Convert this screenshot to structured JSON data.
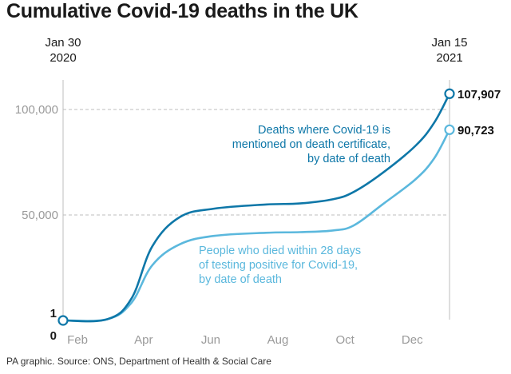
{
  "header": {
    "title": "Cumulative Covid-19 deaths in the UK"
  },
  "footer": {
    "source": "PA graphic. Source: ONS, Department of Health & Social Care"
  },
  "colors": {
    "certificate_series": "#0e77a8",
    "test_series": "#5bb8dd",
    "gridline": "#bdbdbd",
    "tick_text": "#9a9a9a"
  },
  "chart_data": {
    "type": "line",
    "title": "Cumulative Covid-19 deaths in the UK",
    "start_label": [
      "Jan 30",
      "2020"
    ],
    "end_label": [
      "Jan 15",
      "2021"
    ],
    "x_tick_labels": [
      "Feb",
      "Apr",
      "Jun",
      "Aug",
      "Oct",
      "Dec"
    ],
    "y_tick_labels": [
      "0",
      "1",
      "50,000",
      "100,000"
    ],
    "ylim": [
      0,
      110000
    ],
    "grid": true,
    "series": [
      {
        "name": "Deaths where Covid-19 is mentioned on death certificate, by date of death",
        "annotation": [
          "Deaths where Covid-19 is",
          "mentioned on death certificate,",
          "by date of death"
        ],
        "end_value": 107907,
        "end_label": "107,907",
        "points": [
          [
            "2020-01-30",
            1
          ],
          [
            "2020-03-10",
            200
          ],
          [
            "2020-04-01",
            10000
          ],
          [
            "2020-04-20",
            35000
          ],
          [
            "2020-05-15",
            49000
          ],
          [
            "2020-06-15",
            53000
          ],
          [
            "2020-08-01",
            55000
          ],
          [
            "2020-09-01",
            55500
          ],
          [
            "2020-10-01",
            57500
          ],
          [
            "2020-10-20",
            61000
          ],
          [
            "2020-11-15",
            70000
          ],
          [
            "2020-12-15",
            83000
          ],
          [
            "2021-01-01",
            94000
          ],
          [
            "2021-01-15",
            107907
          ]
        ]
      },
      {
        "name": "People who died within 28 days of testing positive for Covid-19, by date of death",
        "annotation": [
          "People who died within 28 days",
          "of testing positive for Covid-19,",
          "by date of death"
        ],
        "end_value": 90723,
        "end_label": "90,723",
        "points": [
          [
            "2020-01-30",
            1
          ],
          [
            "2020-03-10",
            200
          ],
          [
            "2020-04-01",
            8000
          ],
          [
            "2020-04-20",
            26000
          ],
          [
            "2020-05-15",
            36000
          ],
          [
            "2020-06-15",
            40000
          ],
          [
            "2020-08-01",
            41500
          ],
          [
            "2020-09-01",
            41800
          ],
          [
            "2020-10-01",
            42600
          ],
          [
            "2020-10-20",
            45000
          ],
          [
            "2020-11-15",
            55000
          ],
          [
            "2020-12-15",
            67000
          ],
          [
            "2021-01-01",
            77000
          ],
          [
            "2021-01-15",
            90723
          ]
        ]
      }
    ]
  }
}
